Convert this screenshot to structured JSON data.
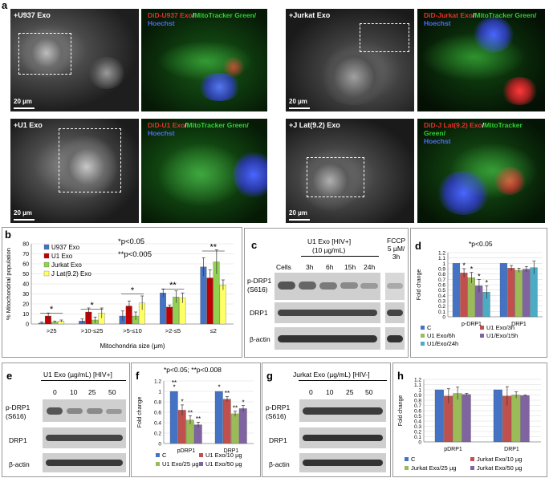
{
  "panels": {
    "a": "a",
    "b": "b",
    "c": "c",
    "d": "d",
    "e": "e",
    "f": "f",
    "g": "g",
    "h": "h"
  },
  "micro": {
    "u937": "+U937 Exo",
    "u937_fl": [
      "DiD-U937 Exo",
      "/",
      "MitoTracker Green/",
      "Hoechst"
    ],
    "jurkat": "+Jurkat Exo",
    "jurkat_fl": [
      "DiD-Jurkat Exo",
      "/",
      "MitoTracker Green/",
      "Hoechst"
    ],
    "u1": "+U1 Exo",
    "u1_fl": [
      "DiD-U1 Exo",
      "/",
      "MitoTracker Green/",
      "Hoechst"
    ],
    "jlat": "+J Lat(9.2) Exo",
    "jlat_fl": [
      "DiD-J Lat(9.2) Exo",
      "/",
      "MitoTracker Green/",
      "Hoechst"
    ],
    "scale": "20 µm"
  },
  "colors": {
    "red": "#e8302c",
    "green": "#2fd22f",
    "blue": "#4b6bff",
    "u937": "#4472c4",
    "u1": "#c00000",
    "jurkat": "#92d050",
    "jlat": "#ffff66",
    "c": "#4472c4",
    "u1_3h": "#c0504d",
    "u1_6h": "#9bbb59",
    "u1_15h": "#8064a2",
    "u1_24h": "#4bacc6"
  },
  "b": {
    "sig1": "*p<0.05",
    "sig2": "**p<0.005",
    "ylabel": "% Mitochondrial population",
    "xlabel": "Mitochondria size (µm)",
    "yticks": [
      "0",
      "10",
      "20",
      "30",
      "40",
      "50",
      "60",
      "70",
      "80"
    ],
    "legend": [
      "U937 Exo",
      "U1 Exo",
      "Jurkat Exo",
      "J Lat(9.2) Exo"
    ],
    "categories": [
      ">25",
      ">10-≤25",
      ">5-≤10",
      ">2-≤5",
      "≤2"
    ],
    "stars": [
      "*",
      "*",
      "*",
      "**",
      "**"
    ]
  },
  "c": {
    "header": "U1 Exo [HIV+]",
    "dose": "(10 µg/mL)",
    "lanes": [
      "Cells",
      "3h",
      "6h",
      "15h",
      "24h"
    ],
    "fccp": [
      "FCCP",
      "5 µM/",
      "3h"
    ],
    "rows": [
      "p-DRP1",
      "(S616)",
      "DRP1",
      "β-actin"
    ]
  },
  "d": {
    "sig": "*p<0.05",
    "ylabel": "Fold change",
    "yticks": [
      "0",
      "0.1",
      "0.2",
      "0.3",
      "0.4",
      "0.5",
      "0.6",
      "0.7",
      "0.8",
      "0.9",
      "1",
      "1.1",
      "1.2"
    ],
    "categories": [
      "p-DRP1",
      "DRP1"
    ],
    "legend": [
      "C",
      "U1 Exo/3h",
      "U1 Exo/6h",
      "U1/Exo/15h",
      "U1/Exo/24h"
    ],
    "stars": [
      "*",
      "*",
      "*",
      "*"
    ]
  },
  "e": {
    "header": "U1 Exo (µg/mL) [HIV+]",
    "lanes": [
      "0",
      "10",
      "25",
      "50"
    ],
    "rows": [
      "p-DRP1",
      "(S616)",
      "DRP1",
      "β-actin"
    ]
  },
  "f": {
    "sig": "*p<0.05; **p<0.008",
    "ylabel": "Fold change",
    "yticks": [
      "0",
      "0.2",
      "0.4",
      "0.6",
      "0.8",
      "1",
      "1.2"
    ],
    "categories": [
      "pDRP1",
      "DRP1"
    ],
    "legend": [
      "C",
      "U1 Exo/10 µg",
      "U1 Exo/25 µg",
      "U1 Exo/50 µg"
    ],
    "stars": [
      "*",
      "**",
      "*",
      "**",
      "**",
      "*",
      "**",
      "**",
      "*"
    ]
  },
  "g": {
    "header": "Jurkat Exo (µg/mL) [HIV-]",
    "lanes": [
      "0",
      "10",
      "25",
      "50"
    ],
    "rows": [
      "p-DRP1",
      "(S616)",
      "DRP1",
      "β-actin"
    ]
  },
  "h": {
    "ylabel": "Fold change",
    "yticks": [
      "0",
      "0.1",
      "0.2",
      "0.3",
      "0.4",
      "0.5",
      "0.6",
      "0.7",
      "0.8",
      "0.9",
      "1",
      "1.1",
      "1.2"
    ],
    "categories": [
      "pDRP1",
      "DRP1"
    ],
    "legend": [
      "C",
      "Jurkat Exo/10 µg",
      "Jurkat Exo/25 µg",
      "Jurkat Exo/50 µg"
    ]
  },
  "chart_data": [
    {
      "type": "bar",
      "panel": "b",
      "categories": [
        ">25",
        ">10-≤25",
        ">5-≤10",
        ">2-≤5",
        "≤2"
      ],
      "ylim": [
        0,
        80
      ],
      "series": [
        {
          "name": "U937 Exo",
          "values": [
            1,
            3,
            8,
            31,
            57
          ],
          "err": [
            1,
            2,
            5,
            4,
            9
          ]
        },
        {
          "name": "U1 Exo",
          "values": [
            8,
            12,
            18,
            17,
            46
          ],
          "err": [
            3,
            4,
            5,
            2,
            8
          ]
        },
        {
          "name": "Jurkat Exo",
          "values": [
            2,
            4,
            8,
            27,
            62
          ],
          "err": [
            1,
            3,
            4,
            6,
            12
          ]
        },
        {
          "name": "J Lat(9.2) Exo",
          "values": [
            3,
            11,
            21,
            26,
            39
          ],
          "err": [
            1,
            5,
            7,
            5,
            5
          ]
        }
      ]
    },
    {
      "type": "bar",
      "panel": "d",
      "categories": [
        "p-DRP1",
        "DRP1"
      ],
      "ylim": [
        0,
        1.2
      ],
      "series": [
        {
          "name": "C",
          "values": [
            1.0,
            1.0
          ],
          "err": [
            0,
            0
          ]
        },
        {
          "name": "U1 Exo/3h",
          "values": [
            0.82,
            0.91
          ],
          "err": [
            0.08,
            0.05
          ]
        },
        {
          "name": "U1 Exo/6h",
          "values": [
            0.73,
            0.87
          ],
          "err": [
            0.1,
            0.04
          ]
        },
        {
          "name": "U1/Exo/15h",
          "values": [
            0.58,
            0.89
          ],
          "err": [
            0.12,
            0.05
          ]
        },
        {
          "name": "U1/Exo/24h",
          "values": [
            0.46,
            0.92
          ],
          "err": [
            0.12,
            0.12
          ]
        }
      ]
    },
    {
      "type": "bar",
      "panel": "f",
      "categories": [
        "pDRP1",
        "DRP1"
      ],
      "ylim": [
        0,
        1.2
      ],
      "series": [
        {
          "name": "C",
          "values": [
            1.0,
            1.0
          ],
          "err": [
            0,
            0
          ]
        },
        {
          "name": "U1 Exo/10 µg",
          "values": [
            0.64,
            0.85
          ],
          "err": [
            0.1,
            0.05
          ]
        },
        {
          "name": "U1 Exo/25 µg",
          "values": [
            0.45,
            0.57
          ],
          "err": [
            0.08,
            0.05
          ]
        },
        {
          "name": "U1 Exo/50 µg",
          "values": [
            0.36,
            0.67
          ],
          "err": [
            0.05,
            0.06
          ]
        }
      ]
    },
    {
      "type": "bar",
      "panel": "h",
      "categories": [
        "pDRP1",
        "DRP1"
      ],
      "ylim": [
        0,
        1.2
      ],
      "series": [
        {
          "name": "C",
          "values": [
            1.0,
            1.0
          ],
          "err": [
            0,
            0
          ]
        },
        {
          "name": "Jurkat Exo/10 µg",
          "values": [
            0.88,
            0.88
          ],
          "err": [
            0.14,
            0.18
          ]
        },
        {
          "name": "Jurkat Exo/25 µg",
          "values": [
            0.93,
            0.9
          ],
          "err": [
            0.12,
            0.06
          ]
        },
        {
          "name": "Jurkat Exo/50 µg",
          "values": [
            0.91,
            0.89
          ],
          "err": [
            0.02,
            0.01
          ]
        }
      ]
    }
  ]
}
